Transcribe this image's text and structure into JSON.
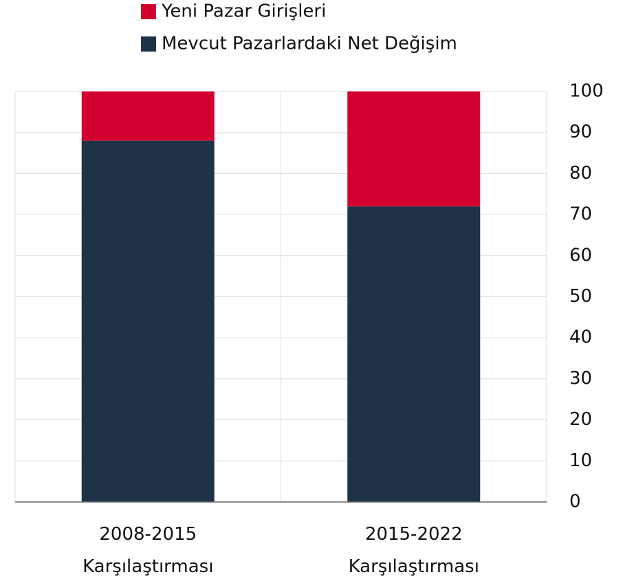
{
  "chart_data": {
    "type": "stacked_bar",
    "categories": [
      "2008-2015 Karşılaştırması",
      "2015-2022 Karşılaştırması"
    ],
    "series": [
      {
        "name": "Mevcut Pazarlardaki Net Değişim",
        "color": "#1f3347",
        "values": [
          88,
          72
        ]
      },
      {
        "name": "Yeni Pazar Girişleri",
        "color": "#d2002e",
        "values": [
          12,
          28
        ]
      }
    ],
    "ylim": [
      0,
      100
    ],
    "yticks": [
      0,
      10,
      20,
      30,
      40,
      50,
      60,
      70,
      80,
      90,
      100
    ],
    "grid": true
  }
}
